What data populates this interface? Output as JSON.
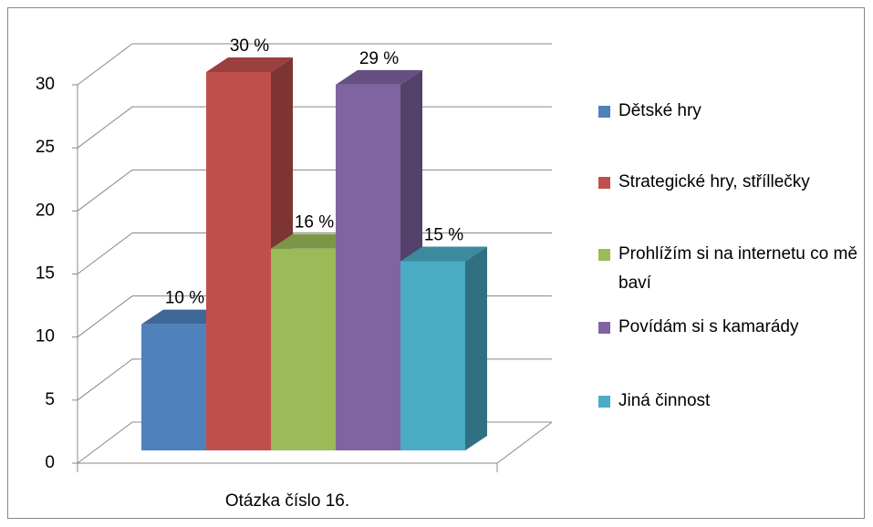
{
  "chart_data": {
    "type": "bar3d",
    "categories": [
      "Otázka číslo 16."
    ],
    "series": [
      {
        "name": "Dětské hry",
        "color": "#4f81bd",
        "values": [
          10
        ],
        "value_labels": [
          "10 %"
        ]
      },
      {
        "name": "Strategické hry, stříllečky",
        "color": "#c0504d",
        "values": [
          30
        ],
        "value_labels": [
          "30 %"
        ]
      },
      {
        "name": "Prohlížím si na internetu co mě baví",
        "color": "#9bbb59",
        "values": [
          16
        ],
        "value_labels": [
          "16 %"
        ]
      },
      {
        "name": "Povídám si s kamarády",
        "color": "#8064a2",
        "values": [
          29
        ],
        "value_labels": [
          "29 %"
        ]
      },
      {
        "name": "Jiná činnost",
        "color": "#4bacc6",
        "values": [
          15
        ],
        "value_labels": [
          "15 %"
        ]
      }
    ],
    "ylim": [
      0,
      30
    ],
    "yticks": [
      0,
      5,
      10,
      15,
      20,
      25,
      30
    ],
    "grid": true,
    "legend": "right"
  }
}
